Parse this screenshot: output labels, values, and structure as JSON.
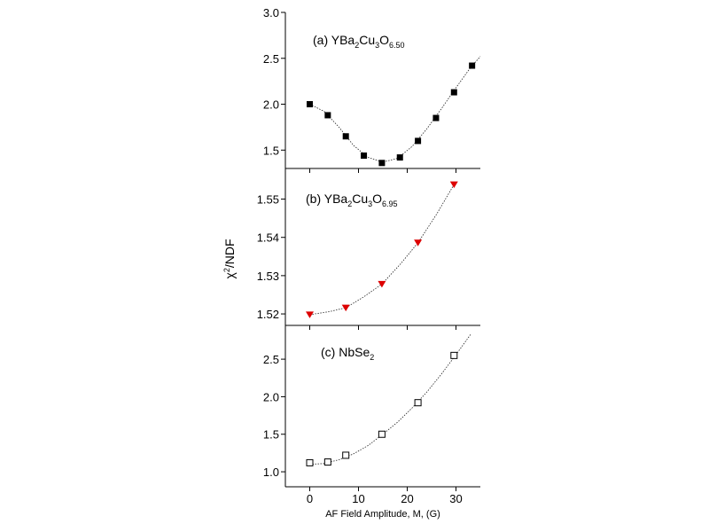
{
  "chart_data": {
    "type": "scatter",
    "xlabel": "AF Field Amplitude, M, (G)",
    "ylabel": "χ²/NDF",
    "xlim": [
      -5,
      35
    ],
    "xticks": [
      0,
      10,
      20,
      30
    ],
    "x_tick_labels": [
      "0",
      "10",
      "20",
      "30"
    ],
    "panels": [
      {
        "id": "a",
        "label": {
          "prefix": "(a) YBa",
          "s1": "2",
          "m1": "Cu",
          "s2": "3",
          "m2": "O",
          "s3": "6.50"
        },
        "marker": "filled-square",
        "color": "#000000",
        "ylim": [
          1.3,
          3.0
        ],
        "yticks": [
          1.5,
          2.0,
          2.5,
          3.0
        ],
        "y_tick_labels": [
          "1.5",
          "2.0",
          "2.5",
          "3.0"
        ],
        "x": [
          0,
          3.7,
          7.4,
          11.1,
          14.8,
          18.5,
          22.2,
          25.9,
          29.6,
          33.3
        ],
        "y": [
          2.0,
          1.88,
          1.65,
          1.44,
          1.36,
          1.42,
          1.6,
          1.85,
          2.13,
          2.42
        ],
        "fit": [
          [
            0,
            2.0
          ],
          [
            3,
            1.92
          ],
          [
            6,
            1.75
          ],
          [
            9,
            1.55
          ],
          [
            12,
            1.42
          ],
          [
            15,
            1.37
          ],
          [
            18,
            1.41
          ],
          [
            21,
            1.54
          ],
          [
            24,
            1.73
          ],
          [
            27,
            1.95
          ],
          [
            30,
            2.18
          ],
          [
            33,
            2.4
          ],
          [
            35,
            2.52
          ]
        ]
      },
      {
        "id": "b",
        "label": {
          "prefix": "(b) YBa",
          "s1": "2",
          "m1": "Cu",
          "s2": "3",
          "m2": "O",
          "s3": "6.95"
        },
        "marker": "down-triangle",
        "color": "#dd0000",
        "ylim": [
          1.517,
          1.558
        ],
        "yticks": [
          1.52,
          1.53,
          1.54,
          1.55
        ],
        "y_tick_labels": [
          "1.52",
          "1.53",
          "1.54",
          "1.55"
        ],
        "x": [
          0,
          7.4,
          14.8,
          22.2,
          29.6
        ],
        "y": [
          1.5198,
          1.5216,
          1.5278,
          1.5386,
          1.5538
        ],
        "fit": [
          [
            0,
            1.5198
          ],
          [
            4,
            1.5206
          ],
          [
            7.4,
            1.5216
          ],
          [
            11,
            1.5244
          ],
          [
            14.8,
            1.5278
          ],
          [
            18.5,
            1.5329
          ],
          [
            22.2,
            1.5386
          ],
          [
            26,
            1.546
          ],
          [
            29.6,
            1.5538
          ]
        ]
      },
      {
        "id": "c",
        "label": {
          "prefix": "(c) NbSe",
          "s1": "2"
        },
        "marker": "open-square",
        "color": "#000000",
        "ylim": [
          0.8,
          2.95
        ],
        "yticks": [
          1.0,
          1.5,
          2.0,
          2.5
        ],
        "y_tick_labels": [
          "1.0",
          "1.5",
          "2.0",
          "2.5"
        ],
        "x": [
          0,
          3.7,
          7.4,
          14.8,
          22.2,
          29.6
        ],
        "y": [
          1.12,
          1.13,
          1.22,
          1.5,
          1.92,
          2.55
        ],
        "fit": [
          [
            0,
            1.1
          ],
          [
            3,
            1.11
          ],
          [
            6,
            1.16
          ],
          [
            9,
            1.24
          ],
          [
            12,
            1.35
          ],
          [
            15,
            1.5
          ],
          [
            18,
            1.66
          ],
          [
            21,
            1.85
          ],
          [
            24,
            2.06
          ],
          [
            27,
            2.3
          ],
          [
            30,
            2.56
          ],
          [
            33,
            2.83
          ]
        ]
      }
    ]
  }
}
